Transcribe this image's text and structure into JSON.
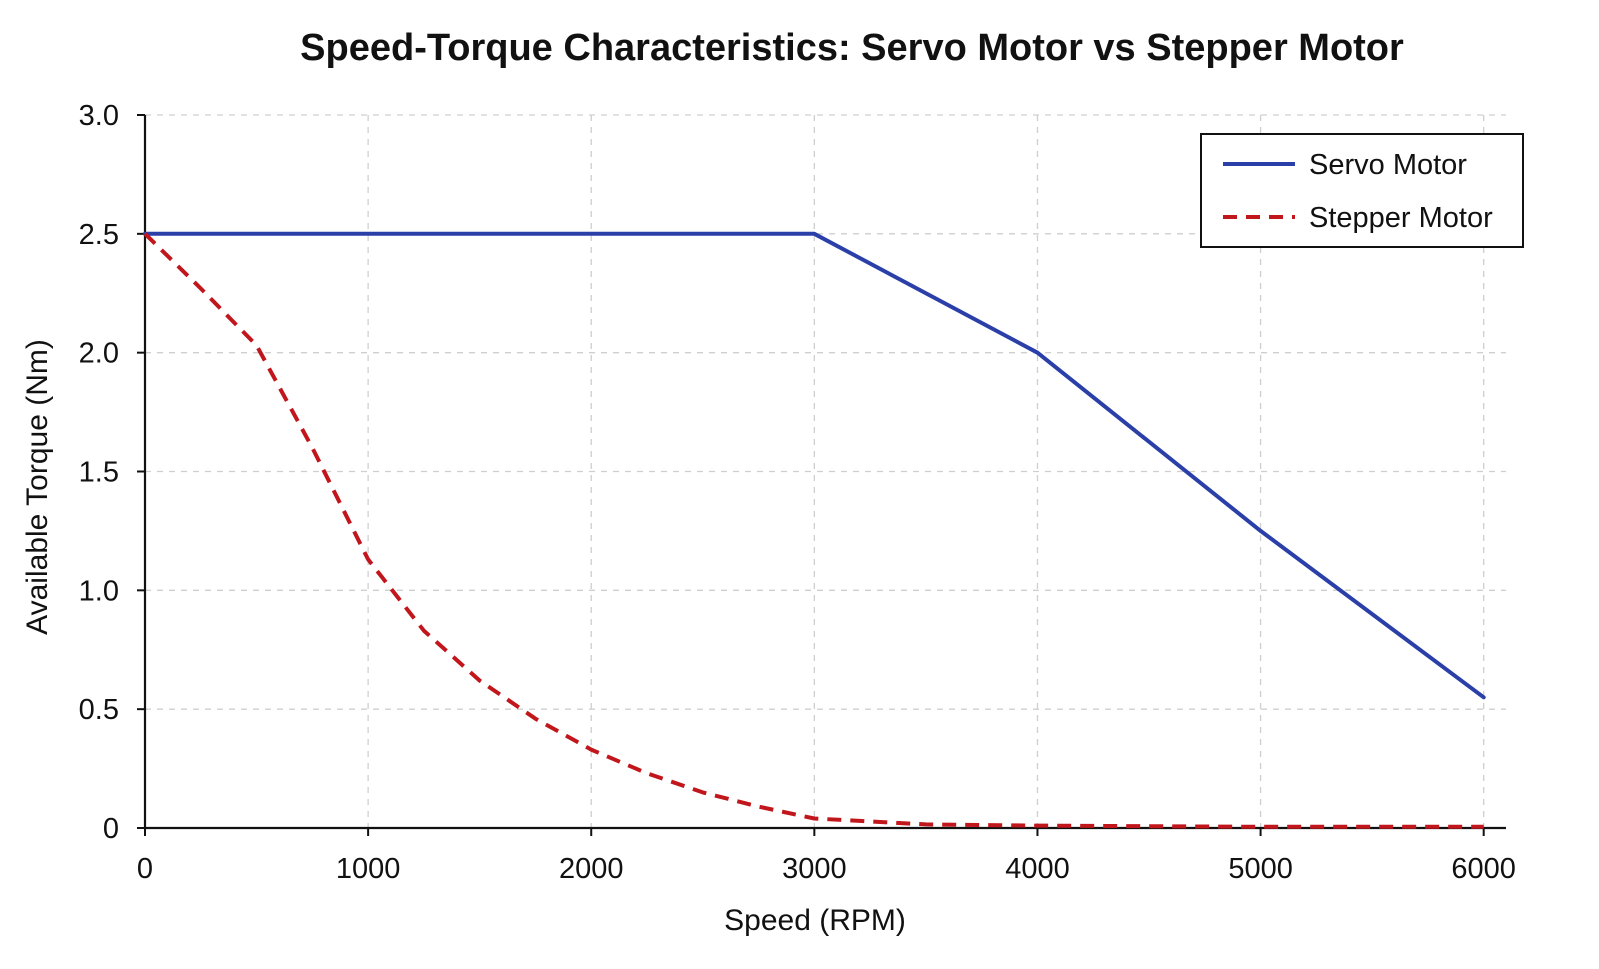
{
  "chart_data": {
    "type": "line",
    "title": "Speed-Torque Characteristics: Servo Motor vs Stepper Motor",
    "xlabel": "Speed (RPM)",
    "ylabel": "Available Torque (Nm)",
    "xlim": [
      0,
      6100
    ],
    "ylim": [
      0,
      3.0
    ],
    "x_ticks": [
      0,
      1000,
      2000,
      3000,
      4000,
      5000,
      6000
    ],
    "x_tick_labels": [
      "0",
      "1000",
      "2000",
      "3000",
      "4000",
      "5000",
      "6000"
    ],
    "y_ticks": [
      0,
      0.5,
      1.0,
      1.5,
      2.0,
      2.5,
      3.0
    ],
    "y_tick_labels": [
      "0",
      "0.5",
      "1.0",
      "1.5",
      "2.0",
      "2.5",
      "3.0"
    ],
    "grid": true,
    "legend_position": "top-right",
    "series": [
      {
        "name": "Servo Motor",
        "color": "#2a3fa8",
        "line_style": "solid",
        "x": [
          0,
          3000,
          4000,
          5000,
          6000
        ],
        "y": [
          2.5,
          2.5,
          2.0,
          1.25,
          0.55
        ]
      },
      {
        "name": "Stepper Motor",
        "color": "#c0161c",
        "line_style": "dashed",
        "x": [
          0,
          250,
          500,
          750,
          1000,
          1250,
          1500,
          1750,
          2000,
          2250,
          2500,
          2750,
          3000,
          3500,
          4000,
          5000,
          6000
        ],
        "y": [
          2.5,
          2.27,
          2.03,
          1.6,
          1.13,
          0.83,
          0.62,
          0.46,
          0.33,
          0.23,
          0.15,
          0.09,
          0.04,
          0.015,
          0.01,
          0.005,
          0.005
        ]
      }
    ]
  }
}
